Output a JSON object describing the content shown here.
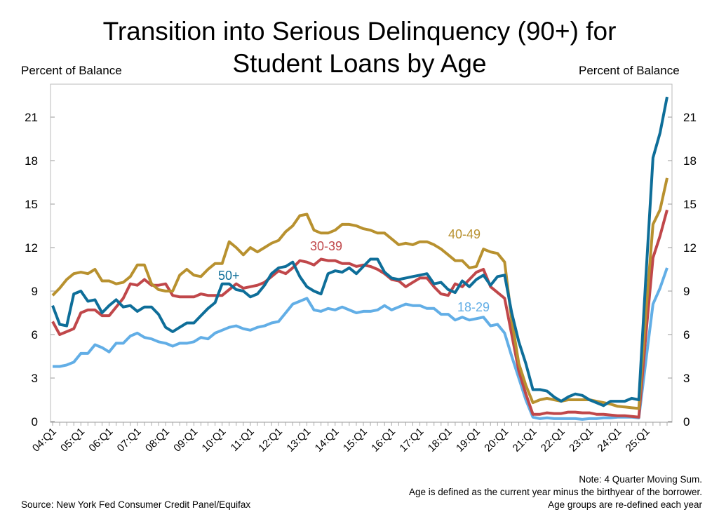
{
  "title_line1": "Transition into Serious Delinquency (90+) for",
  "title_line2": "Student Loans by Age",
  "left_axis_label": "Percent of Balance",
  "right_axis_label": "Percent of Balance",
  "notes": [
    "Note: 4 Quarter Moving Sum.",
    "Age is defined as the current year minus the birthyear of the borrower.",
    "Age groups are re-defined each year"
  ],
  "source": "Source: New York Fed Consumer Credit Panel/Equifax",
  "chart_data": {
    "type": "line",
    "title": "Transition into Serious Delinquency (90+) for Student Loans by Age",
    "ylabel": "Percent of Balance",
    "ylim": [
      0,
      23
    ],
    "yticks": [
      0,
      3,
      6,
      9,
      12,
      15,
      18,
      21
    ],
    "x_start": "04:Q1",
    "x_end": "25:Q4",
    "xtick_labels": [
      "04:Q1",
      "05:Q1",
      "06:Q1",
      "07:Q1",
      "08:Q1",
      "09:Q1",
      "10:Q1",
      "11:Q1",
      "12:Q1",
      "13:Q1",
      "14:Q1",
      "15:Q1",
      "16:Q1",
      "17:Q1",
      "18:Q1",
      "19:Q1",
      "20:Q1",
      "21:Q1",
      "22:Q1",
      "23:Q1",
      "24:Q1",
      "25:Q1"
    ],
    "grid": false,
    "legend": "inline labels",
    "series": [
      {
        "name": "18-29",
        "color": "#62AEE6",
        "values": [
          3.8,
          3.8,
          3.9,
          4.1,
          4.7,
          4.7,
          5.3,
          5.1,
          4.8,
          5.4,
          5.4,
          5.9,
          6.1,
          5.8,
          5.7,
          5.5,
          5.4,
          5.2,
          5.4,
          5.4,
          5.5,
          5.8,
          5.7,
          6.1,
          6.3,
          6.5,
          6.6,
          6.4,
          6.3,
          6.5,
          6.6,
          6.8,
          6.9,
          7.5,
          8.1,
          8.3,
          8.5,
          7.7,
          7.6,
          7.8,
          7.7,
          7.9,
          7.7,
          7.5,
          7.6,
          7.6,
          7.7,
          8.0,
          7.7,
          7.9,
          8.1,
          8.0,
          8.0,
          7.8,
          7.8,
          7.4,
          7.4,
          7.0,
          7.2,
          7.0,
          7.1,
          7.2,
          6.6,
          6.7,
          6.1,
          4.5,
          3.0,
          1.5,
          0.3,
          0.2,
          0.25,
          0.2,
          0.2,
          0.2,
          0.2,
          0.15,
          0.2,
          0.2,
          0.25,
          0.25,
          0.3,
          0.3,
          0.3,
          0.25,
          4.2,
          8.1,
          9.2,
          10.6
        ]
      },
      {
        "name": "30-39",
        "color": "#C0474A",
        "values": [
          6.9,
          6.0,
          6.2,
          6.4,
          7.5,
          7.7,
          7.7,
          7.3,
          7.3,
          7.9,
          8.5,
          9.5,
          9.4,
          9.8,
          9.4,
          9.4,
          9.5,
          8.7,
          8.6,
          8.6,
          8.6,
          8.8,
          8.7,
          8.7,
          8.7,
          9.1,
          9.5,
          9.2,
          9.3,
          9.4,
          9.6,
          10.0,
          10.4,
          10.2,
          10.6,
          11.1,
          11.0,
          10.8,
          11.2,
          11.1,
          11.1,
          10.9,
          10.9,
          10.7,
          10.8,
          10.7,
          10.5,
          10.2,
          9.8,
          9.7,
          9.3,
          9.6,
          9.9,
          9.9,
          9.3,
          8.8,
          8.7,
          9.5,
          9.3,
          9.8,
          10.3,
          10.5,
          9.3,
          8.9,
          8.5,
          6.0,
          3.5,
          1.9,
          0.5,
          0.5,
          0.6,
          0.55,
          0.55,
          0.65,
          0.65,
          0.6,
          0.6,
          0.5,
          0.5,
          0.45,
          0.4,
          0.4,
          0.35,
          0.3,
          6.0,
          11.3,
          12.8,
          14.6
        ]
      },
      {
        "name": "40-49",
        "color": "#B8912F",
        "values": [
          8.7,
          9.2,
          9.8,
          10.2,
          10.3,
          10.2,
          10.5,
          9.7,
          9.7,
          9.5,
          9.6,
          10.0,
          10.8,
          10.8,
          9.5,
          9.1,
          9.0,
          9.0,
          10.1,
          10.5,
          10.1,
          10.0,
          10.5,
          10.9,
          10.9,
          12.4,
          12.0,
          11.5,
          12.0,
          11.7,
          12.0,
          12.3,
          12.5,
          13.1,
          13.5,
          14.2,
          14.3,
          13.2,
          13.0,
          13.0,
          13.2,
          13.6,
          13.6,
          13.5,
          13.3,
          13.2,
          13.0,
          13.0,
          12.6,
          12.2,
          12.3,
          12.2,
          12.4,
          12.4,
          12.2,
          11.9,
          11.5,
          11.1,
          11.1,
          10.6,
          10.7,
          11.9,
          11.7,
          11.6,
          11.0,
          7.0,
          4.0,
          2.5,
          1.3,
          1.5,
          1.6,
          1.5,
          1.4,
          1.5,
          1.5,
          1.5,
          1.5,
          1.4,
          1.3,
          1.2,
          1.05,
          1.0,
          0.95,
          0.9,
          7.5,
          13.6,
          14.6,
          16.8
        ]
      },
      {
        "name": "50+",
        "color": "#0E6E99",
        "values": [
          8.0,
          6.7,
          6.6,
          8.8,
          9.0,
          8.3,
          8.4,
          7.5,
          8.0,
          8.4,
          7.9,
          8.0,
          7.6,
          7.9,
          7.9,
          7.4,
          6.5,
          6.2,
          6.5,
          6.8,
          6.8,
          7.3,
          7.8,
          8.2,
          9.5,
          9.5,
          9.1,
          9.0,
          8.6,
          8.8,
          9.4,
          10.2,
          10.6,
          10.7,
          11.0,
          10.0,
          9.3,
          9.0,
          8.8,
          10.2,
          10.4,
          10.3,
          10.6,
          10.2,
          10.7,
          11.2,
          11.2,
          10.3,
          9.9,
          9.8,
          9.9,
          10.0,
          10.1,
          10.2,
          9.5,
          9.6,
          9.1,
          8.9,
          9.7,
          9.3,
          9.8,
          10.1,
          9.4,
          10.0,
          10.1,
          7.5,
          5.5,
          4.0,
          2.2,
          2.2,
          2.1,
          1.7,
          1.4,
          1.7,
          1.9,
          1.8,
          1.5,
          1.3,
          1.1,
          1.4,
          1.4,
          1.4,
          1.6,
          1.5,
          10.0,
          18.2,
          19.9,
          22.4
        ]
      }
    ]
  }
}
